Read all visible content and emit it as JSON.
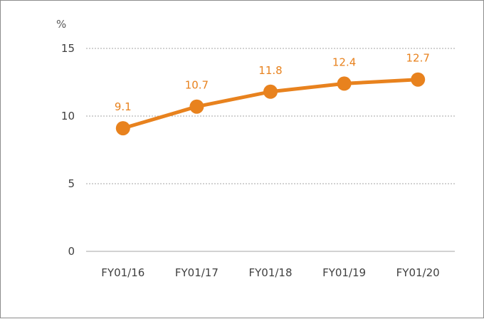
{
  "chart_data": {
    "type": "line",
    "title": "",
    "unit_label": "%",
    "xlabel": "",
    "ylabel": "",
    "categories": [
      "FY01/16",
      "FY01/17",
      "FY01/18",
      "FY01/19",
      "FY01/20"
    ],
    "series": [
      {
        "values": [
          9.1,
          10.7,
          11.8,
          12.4,
          12.7
        ],
        "color": "#e8821e"
      }
    ],
    "data_labels": [
      "9.1",
      "10.7",
      "11.8",
      "12.4",
      "12.7"
    ],
    "ylim": [
      0,
      15
    ],
    "yticks": [
      0,
      5,
      10,
      15
    ],
    "grid": true,
    "legend": "none"
  }
}
